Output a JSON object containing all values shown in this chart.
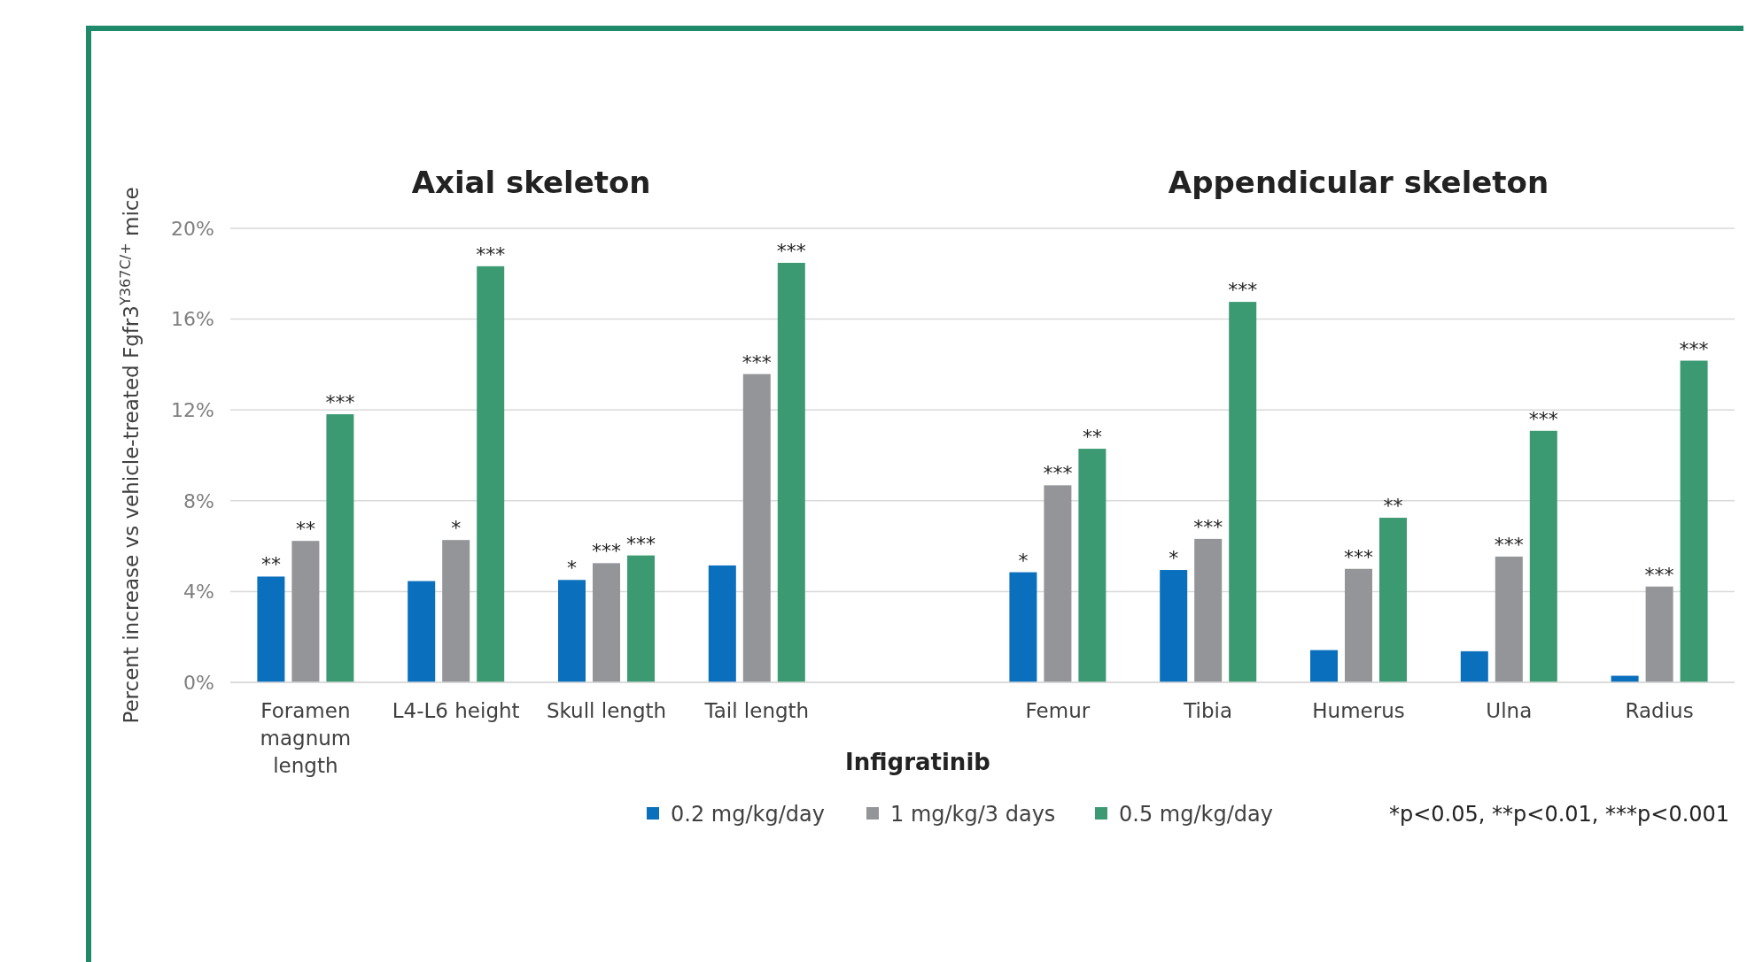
{
  "chart_data": {
    "type": "bar",
    "xlabel": "Infigratinib",
    "ylabel": "Percent increase vs vehicle-treated Fgfr3$^{Y367C/+}$ mice",
    "categories": [
      "Foramen magnum length",
      "L4-L6 height",
      "Skull length",
      "Tail length",
      null,
      "Femur",
      "Tibia",
      "Humerus",
      "Ulna",
      "Radius"
    ],
    "series": [
      {
        "name": "0.2 mg/kg/day",
        "color": "#0a6fbd",
        "values": [
          4.66,
          4.46,
          4.51,
          5.15,
          null,
          4.85,
          4.95,
          1.42,
          1.37,
          0.29
        ],
        "value_labels": [
          "**",
          null,
          "*",
          null,
          null,
          "*",
          "*",
          null,
          null,
          null
        ]
      },
      {
        "name": "1 mg/kg/3 days",
        "color": "#939598",
        "values": [
          6.23,
          6.27,
          5.25,
          13.58,
          null,
          8.68,
          6.32,
          5.0,
          5.54,
          4.22
        ],
        "value_labels": [
          "**",
          "*",
          "***",
          "***",
          null,
          "***",
          "***",
          "***",
          "***",
          "***"
        ]
      },
      {
        "name": "0.5 mg/kg/day",
        "color": "#3c9a73",
        "values": [
          11.81,
          18.33,
          5.59,
          18.48,
          null,
          10.29,
          16.76,
          7.25,
          11.08,
          14.17
        ],
        "value_labels": [
          "***",
          "***",
          "***",
          "***",
          null,
          "**",
          "***",
          "**",
          "***",
          "***"
        ]
      }
    ],
    "ylim": [
      0,
      20
    ],
    "yticks": [
      {
        "value": 0,
        "label": "0%"
      },
      {
        "value": 4,
        "label": "4%"
      },
      {
        "value": 8,
        "label": "8%"
      },
      {
        "value": 12,
        "label": "12%"
      },
      {
        "value": 16,
        "label": "16%"
      },
      {
        "value": 20,
        "label": "20%"
      }
    ],
    "grid": "y",
    "legend": "bottom",
    "annotations": [
      "Axial skeleton",
      "Appendicular skeleton",
      "*p<0.05, **p<0.01, ***p<0.001"
    ]
  }
}
